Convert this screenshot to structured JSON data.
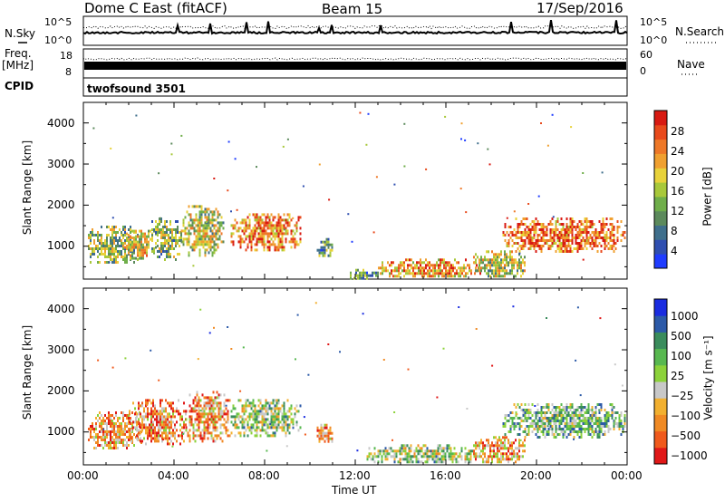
{
  "header": {
    "station": "Dome C East (fitACF)",
    "beam": "Beam 15",
    "date": "17/Sep/2016"
  },
  "params": {
    "nsky_label": "N.Sky",
    "nsearch_label": "N.Search",
    "nsky_ticks": [
      "10^5",
      "10^0"
    ],
    "nsearch_ticks": [
      "10^5",
      "10^0"
    ],
    "freq_label": "Freq.",
    "freq_unit": "[MHz]",
    "freq_ticks": [
      "18",
      "8"
    ],
    "nave_label": "Nave",
    "nave_ticks": [
      "60",
      "0"
    ],
    "cpid_label": "CPID",
    "cpid_value": "twofsound 3501"
  },
  "chart_data": [
    {
      "type": "heatmap",
      "panel": "power",
      "ylabel": "Slant Range [km]",
      "yticks": [
        1000,
        2000,
        3000,
        4000
      ],
      "ylim": [
        200,
        4500
      ],
      "xlim_hours": [
        0,
        24
      ],
      "xticks": [
        "00:00",
        "04:00",
        "08:00",
        "12:00",
        "16:00",
        "20:00",
        "00:00"
      ],
      "colorbar": {
        "label": "Power [dB]",
        "ticks": [
          "28",
          "24",
          "20",
          "16",
          "12",
          "8",
          "4"
        ],
        "colors": [
          "#1f3cff",
          "#2f4fb0",
          "#3f6f8c",
          "#5c8a5c",
          "#6fae4a",
          "#a8c83a",
          "#e8d23a",
          "#f0a030",
          "#ee7828",
          "#e84a1c",
          "#d81a12"
        ]
      },
      "regions": [
        {
          "t0": 0.2,
          "t1": 2.6,
          "r0": 600,
          "r1": 1500,
          "level": 0.45
        },
        {
          "t0": 1.8,
          "t1": 3.2,
          "r0": 700,
          "r1": 1400,
          "level": 0.55
        },
        {
          "t0": 3.0,
          "t1": 4.3,
          "r0": 700,
          "r1": 1700,
          "level": 0.4
        },
        {
          "t0": 4.3,
          "t1": 6.2,
          "r0": 800,
          "r1": 2000,
          "level": 0.5
        },
        {
          "t0": 6.5,
          "t1": 9.6,
          "r0": 900,
          "r1": 1800,
          "level": 0.75
        },
        {
          "t0": 10.3,
          "t1": 11.0,
          "r0": 750,
          "r1": 1200,
          "level": 0.35
        },
        {
          "t0": 11.6,
          "t1": 13.0,
          "r0": 250,
          "r1": 450,
          "level": 0.3
        },
        {
          "t0": 13.0,
          "t1": 17.5,
          "r0": 250,
          "r1": 700,
          "level": 0.7
        },
        {
          "t0": 17.2,
          "t1": 19.5,
          "r0": 250,
          "r1": 900,
          "level": 0.5
        },
        {
          "t0": 18.5,
          "t1": 23.9,
          "r0": 900,
          "r1": 1700,
          "level": 0.8
        }
      ]
    },
    {
      "type": "heatmap",
      "panel": "velocity",
      "ylabel": "Slant Range [km]",
      "yticks": [
        1000,
        2000,
        3000,
        4000
      ],
      "ylim": [
        200,
        4500
      ],
      "xlim_hours": [
        0,
        24
      ],
      "xticks": [
        "00:00",
        "04:00",
        "08:00",
        "12:00",
        "16:00",
        "20:00",
        "00:00"
      ],
      "xlabel": "Time UT",
      "colorbar": {
        "label": "Velocity [m s⁻¹]",
        "ticks": [
          "1000",
          "500",
          "100",
          "25",
          "−25",
          "−100",
          "−500",
          "−1000"
        ],
        "colors": [
          "#e01818",
          "#f05a1c",
          "#f08a24",
          "#f2b030",
          "#c8c8c8",
          "#8cd23a",
          "#58b850",
          "#3a8c5c",
          "#2c5aa8",
          "#1a2ce0"
        ]
      },
      "regions": [
        {
          "t0": 0.2,
          "t1": 2.6,
          "r0": 600,
          "r1": 1500,
          "level": 0.3
        },
        {
          "t0": 2.0,
          "t1": 4.5,
          "r0": 700,
          "r1": 1800,
          "level": 0.25
        },
        {
          "t0": 4.5,
          "t1": 6.5,
          "r0": 800,
          "r1": 2000,
          "level": 0.3
        },
        {
          "t0": 6.5,
          "t1": 9.6,
          "r0": 900,
          "r1": 1800,
          "level": 0.55
        },
        {
          "t0": 10.3,
          "t1": 11.0,
          "r0": 750,
          "r1": 1200,
          "level": 0.3
        },
        {
          "t0": 12.5,
          "t1": 17.5,
          "r0": 250,
          "r1": 700,
          "level": 0.55
        },
        {
          "t0": 17.2,
          "t1": 19.5,
          "r0": 250,
          "r1": 900,
          "level": 0.3
        },
        {
          "t0": 18.5,
          "t1": 23.9,
          "r0": 900,
          "r1": 1700,
          "level": 0.62
        }
      ]
    }
  ]
}
